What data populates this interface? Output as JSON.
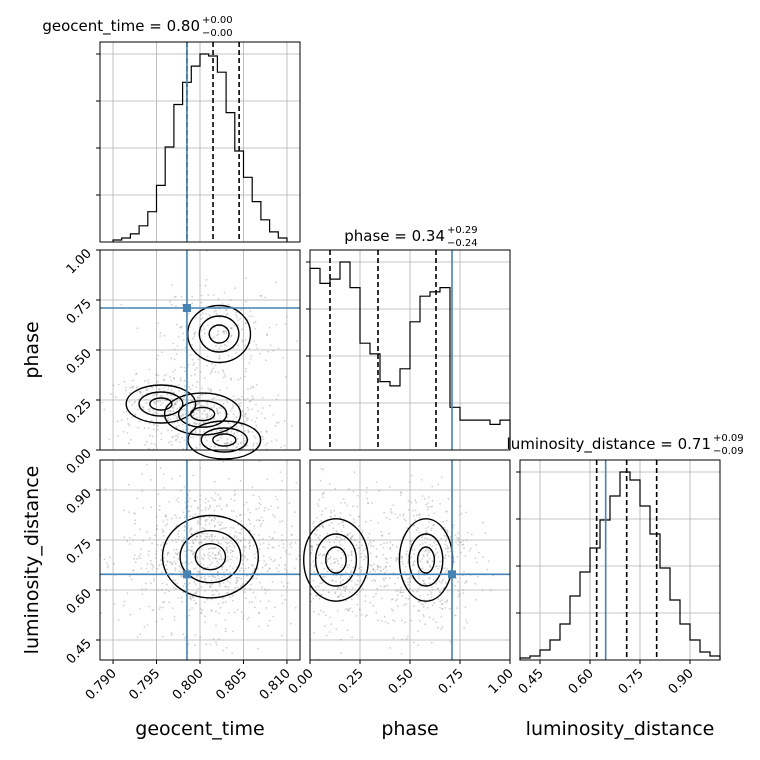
{
  "chart_data": {
    "type": "corner",
    "panel_titles": [
      {
        "name": "geocent_time",
        "label": "geocent_time = 0.80",
        "plus": "+0.00",
        "minus": "−0.00"
      },
      {
        "name": "phase",
        "label": "phase = 0.34",
        "plus": "+0.29",
        "minus": "−0.24"
      },
      {
        "name": "luminosity_distance",
        "label": "luminosity_distance = 0.71",
        "plus": "+0.09",
        "minus": "−0.09"
      }
    ],
    "axis_labels": {
      "x": [
        "geocent_time",
        "phase",
        "luminosity_distance"
      ],
      "y": [
        "phase",
        "luminosity_distance"
      ]
    },
    "ranges": {
      "geocent_time": [
        0.7885,
        0.8115
      ],
      "phase": [
        0.0,
        1.0
      ],
      "luminosity_distance": [
        0.39,
        0.99
      ]
    },
    "ticks": {
      "geocent_time": [
        "0.790",
        "0.795",
        "0.800",
        "0.805",
        "0.810"
      ],
      "phase": [
        "0.00",
        "0.25",
        "0.50",
        "0.75",
        "1.00"
      ],
      "luminosity_distance": [
        "0.45",
        "0.60",
        "0.75",
        "0.90"
      ]
    },
    "truth": {
      "geocent_time": 0.7985,
      "phase": 0.71,
      "luminosity_distance": 0.647
    },
    "quantiles": {
      "geocent_time": [
        0.7985,
        0.8015,
        0.8045
      ],
      "phase": [
        0.1,
        0.34,
        0.63
      ],
      "luminosity_distance": [
        0.62,
        0.71,
        0.8
      ]
    },
    "hist_geocent_time": {
      "bin_edges": [
        0.79,
        0.791,
        0.792,
        0.793,
        0.794,
        0.795,
        0.796,
        0.797,
        0.798,
        0.799,
        0.8,
        0.801,
        0.802,
        0.803,
        0.804,
        0.805,
        0.806,
        0.807,
        0.808,
        0.809,
        0.81
      ],
      "counts": [
        1,
        2,
        4,
        8,
        15,
        28,
        47,
        68,
        79,
        87,
        93,
        92,
        84,
        64,
        45,
        32,
        20,
        11,
        5,
        2
      ]
    },
    "hist_phase": {
      "bin_edges": [
        0.0,
        0.05,
        0.1,
        0.15,
        0.2,
        0.25,
        0.3,
        0.35,
        0.4,
        0.45,
        0.5,
        0.55,
        0.6,
        0.65,
        0.7,
        0.75,
        0.8,
        0.85,
        0.9,
        0.95,
        1.0
      ],
      "counts": [
        85,
        78,
        80,
        88,
        76,
        50,
        45,
        32,
        30,
        38,
        60,
        72,
        74,
        76,
        20,
        14,
        14,
        14,
        12,
        14
      ]
    },
    "hist_luminosity_distance": {
      "bin_edges": [
        0.39,
        0.42,
        0.45,
        0.48,
        0.51,
        0.54,
        0.57,
        0.6,
        0.63,
        0.66,
        0.69,
        0.72,
        0.75,
        0.78,
        0.81,
        0.84,
        0.87,
        0.9,
        0.93,
        0.96,
        0.99
      ],
      "counts": [
        1,
        2,
        5,
        10,
        18,
        32,
        44,
        56,
        70,
        82,
        94,
        90,
        77,
        63,
        46,
        30,
        18,
        10,
        4,
        2
      ]
    },
    "density_blobs": {
      "phase_vs_geocent_time": [
        {
          "x": 0.8003,
          "y": 0.18,
          "sx": 0.0023,
          "sy": 0.055
        },
        {
          "x": 0.7955,
          "y": 0.23,
          "sx": 0.0021,
          "sy": 0.05
        },
        {
          "x": 0.8028,
          "y": 0.05,
          "sx": 0.0022,
          "sy": 0.05
        },
        {
          "x": 0.8022,
          "y": 0.58,
          "sx": 0.0019,
          "sy": 0.075
        }
      ],
      "luminosity_distance_vs_geocent_time": [
        {
          "x": 0.8012,
          "y": 0.7,
          "sx": 0.0029,
          "sy": 0.065
        }
      ],
      "luminosity_distance_vs_phase": [
        {
          "x": 0.13,
          "y": 0.69,
          "sx": 0.085,
          "sy": 0.065
        },
        {
          "x": 0.58,
          "y": 0.69,
          "sx": 0.07,
          "sy": 0.065
        }
      ]
    }
  }
}
